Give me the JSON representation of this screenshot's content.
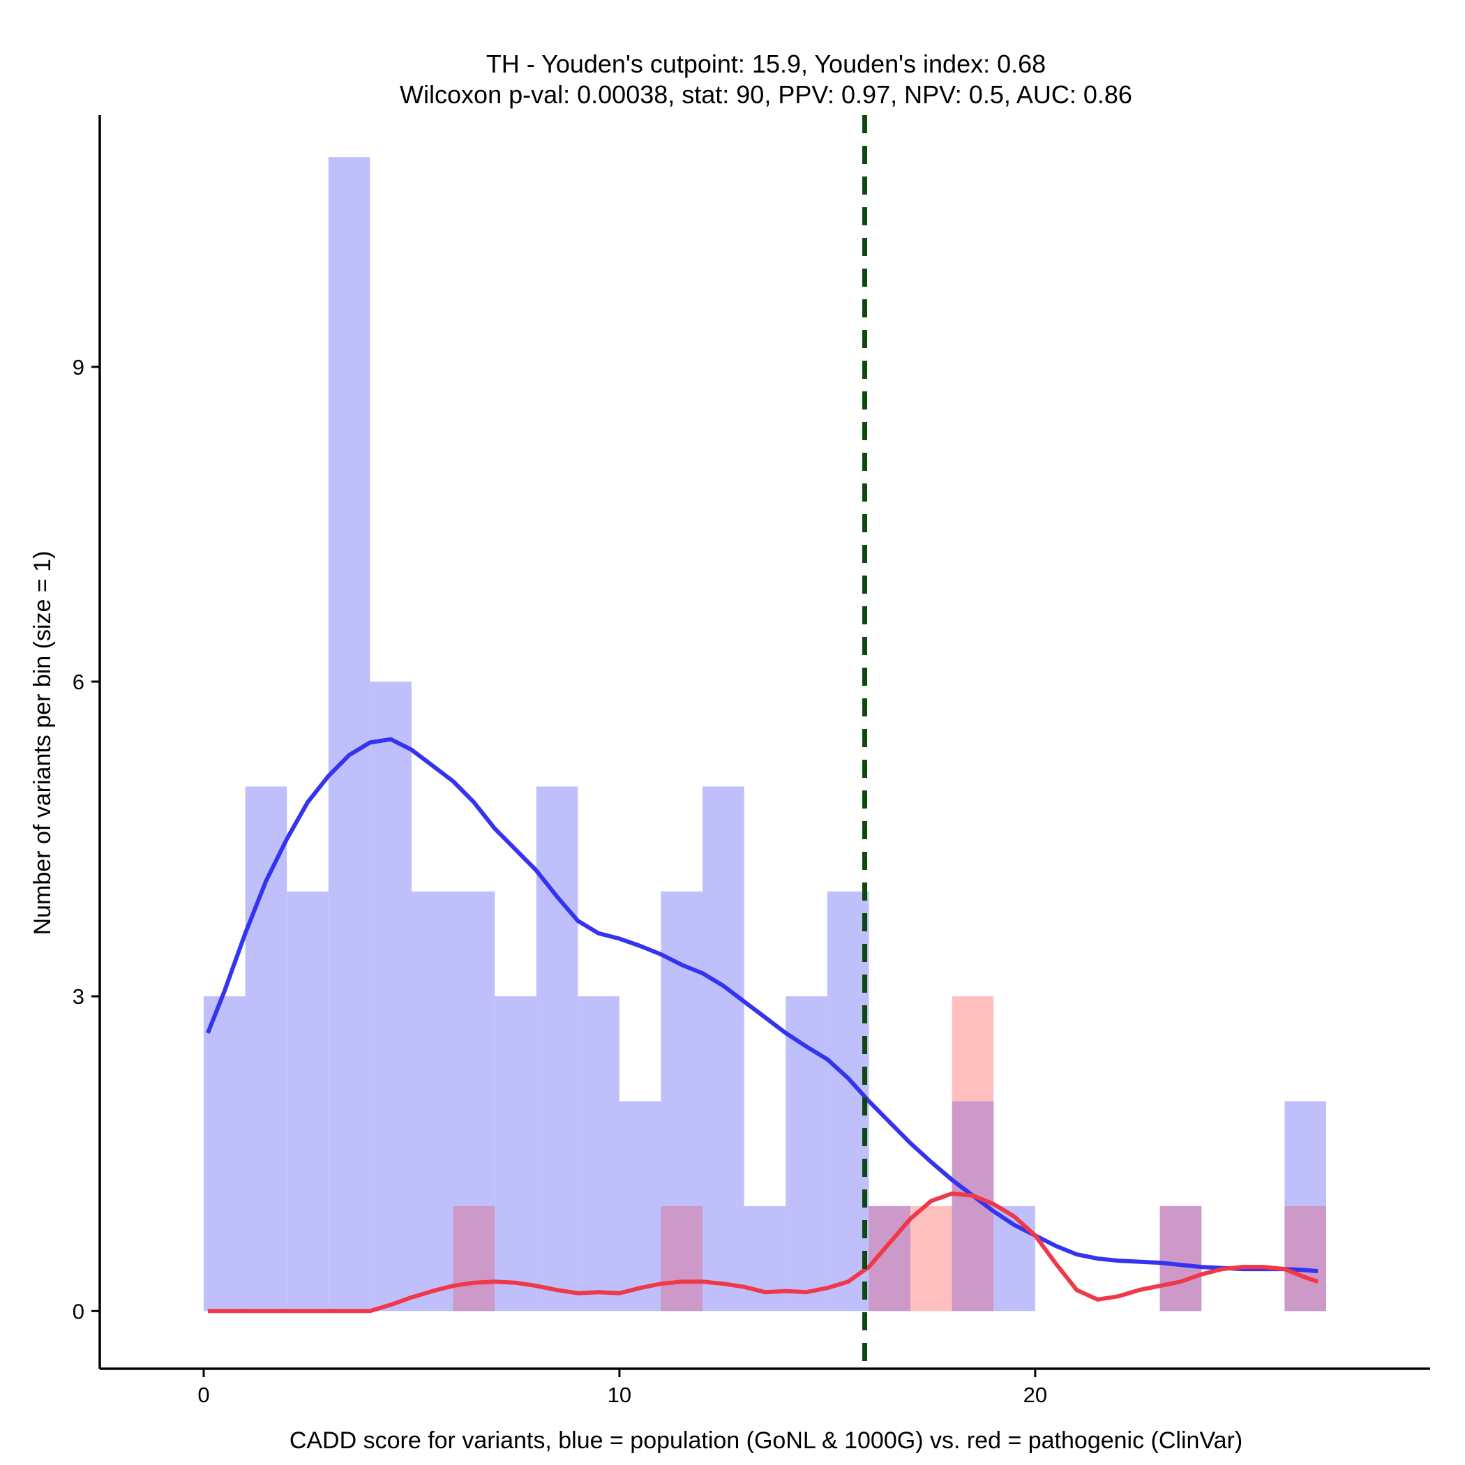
{
  "chart_data": {
    "type": "histogram",
    "title": "TH - Youden's cutpoint: 15.9, Youden's index: 0.68",
    "subtitle": "Wilcoxon p-val: 0.00038, stat: 90, PPV: 0.97, NPV: 0.5, AUC: 0.86",
    "xlabel": "CADD score for variants, blue = population (GoNL & 1000G) vs. red = pathogenic (ClinVar)",
    "ylabel": "Number of variants per bin (size = 1)",
    "xlim": [
      -2.5,
      29.5
    ],
    "ylim": [
      -0.55,
      11.4
    ],
    "x_ticks": [
      0,
      10,
      20
    ],
    "y_ticks": [
      0,
      3,
      6,
      9
    ],
    "bin_size": 1,
    "cutpoint": 15.9,
    "colors": {
      "population_bar": "#bfbffc",
      "pathogenic_bar": "#ffbfbf",
      "overlap_bar": "#cc99c8",
      "population_line": "#3434f0",
      "pathogenic_line": "#f03848",
      "cutpoint_line": "#0e4a0e"
    },
    "series": [
      {
        "name": "population (GoNL & 1000G)",
        "bins": [
          {
            "x0": 0,
            "count": 3
          },
          {
            "x0": 1,
            "count": 5
          },
          {
            "x0": 2,
            "count": 4
          },
          {
            "x0": 3,
            "count": 11
          },
          {
            "x0": 4,
            "count": 6
          },
          {
            "x0": 5,
            "count": 4
          },
          {
            "x0": 6,
            "count": 4
          },
          {
            "x0": 7,
            "count": 3
          },
          {
            "x0": 8,
            "count": 5
          },
          {
            "x0": 9,
            "count": 3
          },
          {
            "x0": 10,
            "count": 2
          },
          {
            "x0": 11,
            "count": 4
          },
          {
            "x0": 12,
            "count": 5
          },
          {
            "x0": 13,
            "count": 1
          },
          {
            "x0": 14,
            "count": 3
          },
          {
            "x0": 15,
            "count": 4
          },
          {
            "x0": 16,
            "count": 1
          },
          {
            "x0": 18,
            "count": 2
          },
          {
            "x0": 19,
            "count": 1
          },
          {
            "x0": 23,
            "count": 1
          },
          {
            "x0": 26,
            "count": 2
          }
        ],
        "density_curve": [
          [
            0.1,
            2.65
          ],
          [
            0.5,
            3.05
          ],
          [
            1.0,
            3.6
          ],
          [
            1.5,
            4.1
          ],
          [
            2.0,
            4.5
          ],
          [
            2.5,
            4.85
          ],
          [
            3.0,
            5.1
          ],
          [
            3.5,
            5.3
          ],
          [
            4.0,
            5.42
          ],
          [
            4.5,
            5.45
          ],
          [
            5.0,
            5.35
          ],
          [
            5.5,
            5.2
          ],
          [
            6.0,
            5.05
          ],
          [
            6.5,
            4.85
          ],
          [
            7.0,
            4.6
          ],
          [
            7.5,
            4.4
          ],
          [
            8.0,
            4.2
          ],
          [
            8.5,
            3.95
          ],
          [
            9.0,
            3.72
          ],
          [
            9.5,
            3.6
          ],
          [
            10.0,
            3.55
          ],
          [
            10.5,
            3.48
          ],
          [
            11.0,
            3.4
          ],
          [
            11.5,
            3.3
          ],
          [
            12.0,
            3.22
          ],
          [
            12.5,
            3.1
          ],
          [
            13.0,
            2.95
          ],
          [
            13.5,
            2.8
          ],
          [
            14.0,
            2.65
          ],
          [
            14.5,
            2.52
          ],
          [
            15.0,
            2.4
          ],
          [
            15.5,
            2.22
          ],
          [
            16.0,
            2.0
          ],
          [
            16.5,
            1.8
          ],
          [
            17.0,
            1.6
          ],
          [
            17.5,
            1.42
          ],
          [
            18.0,
            1.25
          ],
          [
            18.5,
            1.1
          ],
          [
            19.0,
            0.95
          ],
          [
            19.5,
            0.82
          ],
          [
            20.0,
            0.72
          ],
          [
            20.5,
            0.62
          ],
          [
            21.0,
            0.54
          ],
          [
            21.5,
            0.5
          ],
          [
            22.0,
            0.48
          ],
          [
            22.5,
            0.47
          ],
          [
            23.0,
            0.46
          ],
          [
            23.5,
            0.44
          ],
          [
            24.0,
            0.42
          ],
          [
            24.5,
            0.41
          ],
          [
            25.0,
            0.4
          ],
          [
            25.5,
            0.4
          ],
          [
            26.0,
            0.4
          ],
          [
            26.5,
            0.39
          ],
          [
            26.8,
            0.38
          ]
        ]
      },
      {
        "name": "pathogenic (ClinVar)",
        "bins": [
          {
            "x0": 6,
            "count": 1
          },
          {
            "x0": 11,
            "count": 1
          },
          {
            "x0": 16,
            "count": 1
          },
          {
            "x0": 17,
            "count": 1
          },
          {
            "x0": 18,
            "count": 3
          },
          {
            "x0": 23,
            "count": 1
          },
          {
            "x0": 26,
            "count": 1
          }
        ],
        "density_curve": [
          [
            0.1,
            0.0
          ],
          [
            1.0,
            0.0
          ],
          [
            2.0,
            0.0
          ],
          [
            3.0,
            0.0
          ],
          [
            4.0,
            0.0
          ],
          [
            4.5,
            0.06
          ],
          [
            5.0,
            0.13
          ],
          [
            5.5,
            0.19
          ],
          [
            6.0,
            0.24
          ],
          [
            6.5,
            0.27
          ],
          [
            7.0,
            0.28
          ],
          [
            7.5,
            0.27
          ],
          [
            8.0,
            0.24
          ],
          [
            8.5,
            0.2
          ],
          [
            9.0,
            0.17
          ],
          [
            9.5,
            0.18
          ],
          [
            10.0,
            0.17
          ],
          [
            10.5,
            0.22
          ],
          [
            11.0,
            0.26
          ],
          [
            11.5,
            0.28
          ],
          [
            12.0,
            0.28
          ],
          [
            12.5,
            0.26
          ],
          [
            13.0,
            0.23
          ],
          [
            13.5,
            0.18
          ],
          [
            14.0,
            0.19
          ],
          [
            14.5,
            0.18
          ],
          [
            15.0,
            0.22
          ],
          [
            15.5,
            0.28
          ],
          [
            16.0,
            0.42
          ],
          [
            16.5,
            0.65
          ],
          [
            17.0,
            0.88
          ],
          [
            17.5,
            1.05
          ],
          [
            18.0,
            1.12
          ],
          [
            18.5,
            1.1
          ],
          [
            19.0,
            1.02
          ],
          [
            19.5,
            0.9
          ],
          [
            20.0,
            0.72
          ],
          [
            20.5,
            0.45
          ],
          [
            21.0,
            0.2
          ],
          [
            21.5,
            0.11
          ],
          [
            22.0,
            0.14
          ],
          [
            22.5,
            0.2
          ],
          [
            23.0,
            0.24
          ],
          [
            23.5,
            0.28
          ],
          [
            24.0,
            0.35
          ],
          [
            24.5,
            0.4
          ],
          [
            25.0,
            0.42
          ],
          [
            25.5,
            0.42
          ],
          [
            26.0,
            0.4
          ],
          [
            26.5,
            0.32
          ],
          [
            26.8,
            0.28
          ]
        ]
      }
    ]
  }
}
